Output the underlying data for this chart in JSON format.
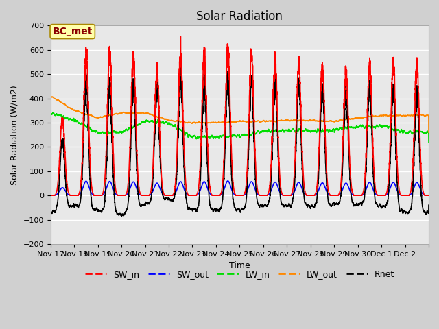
{
  "title": "Solar Radiation",
  "ylabel": "Solar Radiation (W/m2)",
  "xlabel": "Time",
  "ylim": [
    -200,
    700
  ],
  "yticks": [
    -200,
    -100,
    0,
    100,
    200,
    300,
    400,
    500,
    600,
    700
  ],
  "fig_bg_color": "#d0d0d0",
  "plot_bg_color": "#e8e8e8",
  "series": {
    "SW_in": {
      "color": "#ff0000",
      "lw": 1.2
    },
    "SW_out": {
      "color": "#0000ff",
      "lw": 1.2
    },
    "LW_in": {
      "color": "#00dd00",
      "lw": 1.2
    },
    "LW_out": {
      "color": "#ff8800",
      "lw": 1.2
    },
    "Rnet": {
      "color": "#000000",
      "lw": 1.2
    }
  },
  "annotation_text": "BC_met",
  "annotation_fontsize": 10,
  "n_days": 16,
  "points_per_day": 288,
  "title_fontsize": 12,
  "label_fontsize": 9,
  "tick_fontsize": 8,
  "legend_fontsize": 9,
  "x_tick_labels": [
    "Nov 17",
    "Nov 18",
    "Nov 19",
    "Nov 20",
    "Nov 21",
    "Nov 22",
    "Nov 23",
    "Nov 24",
    "Nov 25",
    "Nov 26",
    "Nov 27",
    "Nov 28",
    "Nov 29",
    "Nov 30",
    "Dec 1",
    "Dec 2"
  ],
  "grid_color": "#ffffff",
  "grid_lw": 1.0,
  "sw_peaks": [
    320,
    590,
    580,
    560,
    510,
    570,
    570,
    600,
    570,
    550,
    540,
    520,
    510,
    540,
    540,
    535
  ],
  "lw_in_base": [
    340,
    310,
    260,
    260,
    305,
    300,
    240,
    240,
    245,
    265,
    270,
    265,
    270,
    285,
    285,
    260
  ],
  "lw_out_base": [
    410,
    350,
    320,
    340,
    340,
    310,
    300,
    300,
    305,
    305,
    310,
    310,
    305,
    320,
    330,
    330
  ]
}
